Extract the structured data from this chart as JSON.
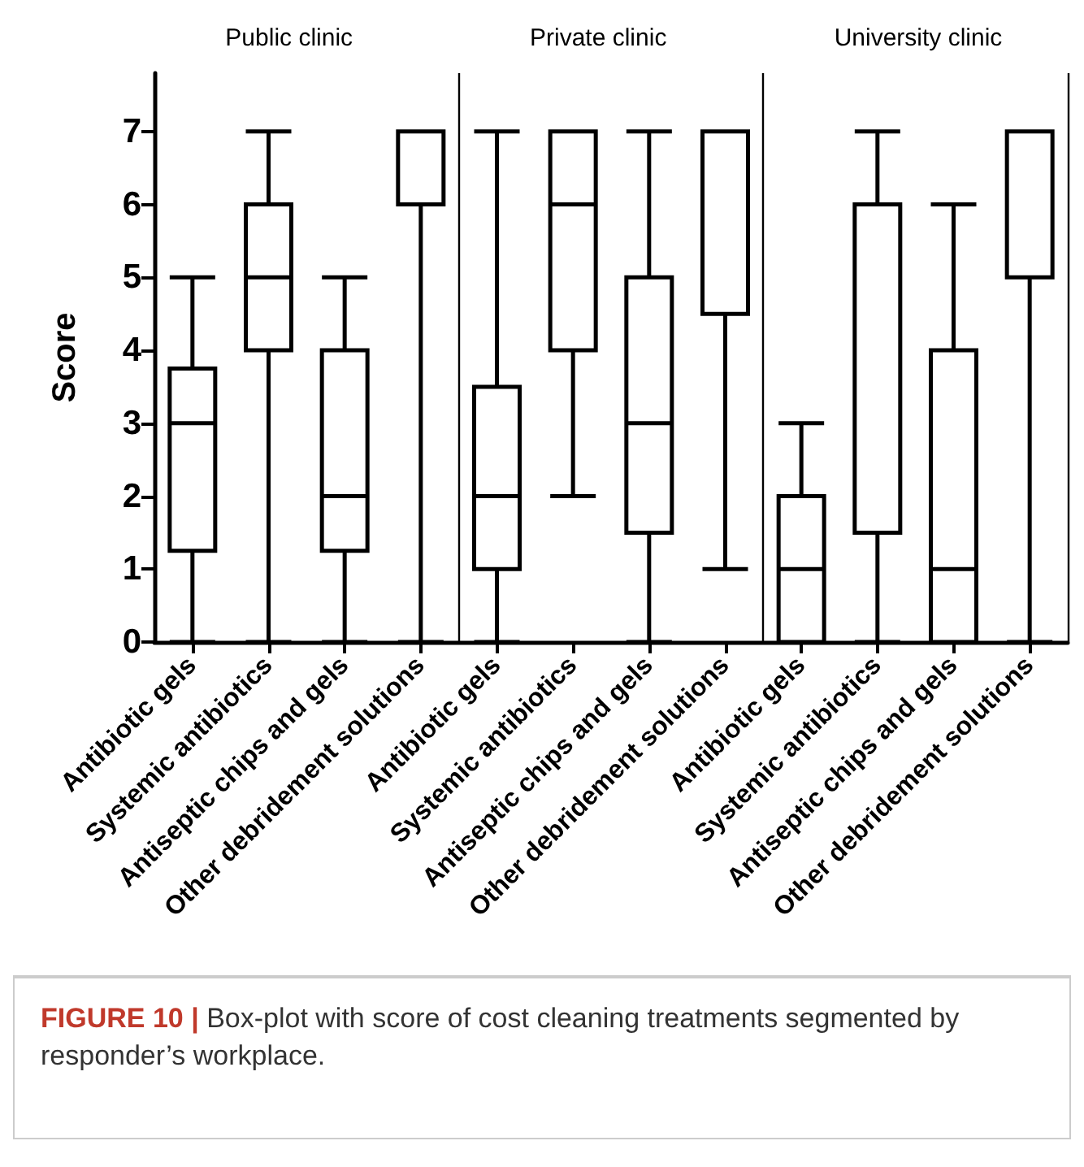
{
  "chart_data": {
    "type": "box",
    "ylabel": "Score",
    "categories": [
      "Antibiotic gels",
      "Systemic antibiotics",
      "Antiseptic chips and gels",
      "Other debridement solutions",
      "Antibiotic gels",
      "Systemic antibiotics",
      "Antiseptic chips and gels",
      "Other debridement solutions",
      "Antibiotic gels",
      "Systemic antibiotics",
      "Antiseptic chips and gels",
      "Other debridement solutions"
    ],
    "series": [
      {
        "color": "#000000",
        "boxes": [
          {
            "low": 0,
            "q1": 1.25,
            "median": 3,
            "q3": 3.75,
            "high": 5
          },
          {
            "low": 0,
            "q1": 4,
            "median": 5,
            "q3": 6,
            "high": 7
          },
          {
            "low": 0,
            "q1": 1.25,
            "median": 2,
            "q3": 4,
            "high": 5
          },
          {
            "low": 0,
            "q1": 6,
            "median": 6,
            "q3": 7,
            "high": 7
          },
          {
            "low": 0,
            "q1": 1,
            "median": 2,
            "q3": 3.5,
            "high": 7
          },
          {
            "low": 2,
            "q1": 4,
            "median": 6,
            "q3": 7,
            "high": 7
          },
          {
            "low": 0,
            "q1": 1.5,
            "median": 3,
            "q3": 5,
            "high": 7
          },
          {
            "low": 1,
            "q1": 4.5,
            "median": 7,
            "q3": 7,
            "high": 7
          },
          {
            "low": 0,
            "q1": 0,
            "median": 1,
            "q3": 2,
            "high": 3
          },
          {
            "low": 0,
            "q1": 1.5,
            "median": 6,
            "q3": 6,
            "high": 7
          },
          {
            "low": 0,
            "q1": 0,
            "median": 1,
            "q3": 4,
            "high": 6
          },
          {
            "low": 0,
            "q1": 5,
            "median": 7,
            "q3": 7,
            "high": 7
          }
        ]
      }
    ],
    "ylim": [
      0,
      7.8
    ],
    "yticks": [
      0,
      1,
      2,
      3,
      4,
      5,
      6,
      7
    ],
    "annotations": [
      "Public clinic",
      "Private clinic",
      "University clinic",
      "FIGURE 10 | Box-plot with score of cost cleaning treatments segmented by responder’s workplace."
    ]
  }
}
